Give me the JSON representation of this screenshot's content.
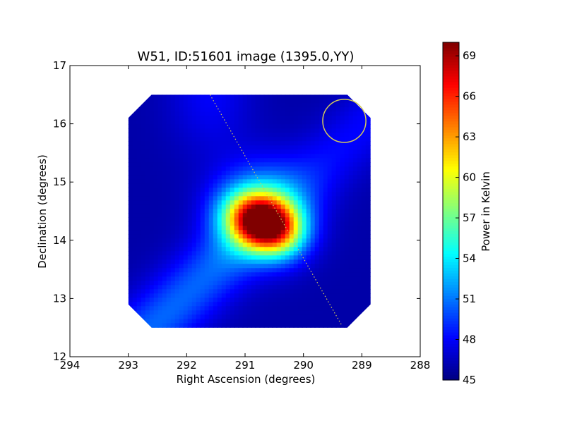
{
  "chart_data": {
    "type": "heatmap",
    "title": "W51, ID:51601 image (1395.0,YY)",
    "xlabel": "Right Ascension (degrees)",
    "ylabel": "Declination (degrees)",
    "x_reversed": true,
    "xlim": [
      294,
      288
    ],
    "ylim": [
      12,
      17
    ],
    "x_ticks": [
      294,
      293,
      292,
      291,
      290,
      289,
      288
    ],
    "y_ticks": [
      12,
      13,
      14,
      15,
      16,
      17
    ],
    "colorbar": {
      "label": "Power in Kelvin",
      "range": [
        45,
        70
      ],
      "ticks": [
        45,
        48,
        51,
        54,
        57,
        60,
        63,
        66,
        69
      ],
      "colormap": "jet"
    },
    "image_extent": {
      "ra_range": [
        293.0,
        288.85
      ],
      "dec_range": [
        12.5,
        16.5
      ],
      "corner_cut_degrees": 0.4
    },
    "peak": {
      "ra": 290.7,
      "dec": 14.3,
      "value": 70
    },
    "features": [
      {
        "type": "ellipse",
        "ra": 289.3,
        "dec": 16.05,
        "radius_ra": 0.37,
        "radius_dec": 0.37,
        "color": "#d4c85a"
      },
      {
        "type": "dotted-track",
        "ra": [
          291.6,
          289.35
        ],
        "dec": [
          16.5,
          12.55
        ],
        "color": "#d4c85a"
      }
    ]
  }
}
